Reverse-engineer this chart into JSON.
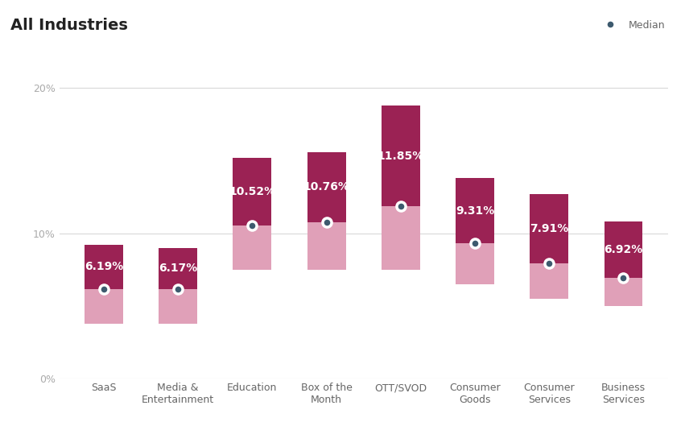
{
  "title": "All Industries",
  "categories": [
    "SaaS",
    "Media &\nEntertainment",
    "Education",
    "Box of the\nMonth",
    "OTT/SVOD",
    "Consumer\nGoods",
    "Consumer\nServices",
    "Business\nServices"
  ],
  "median_values": [
    6.19,
    6.17,
    10.52,
    10.76,
    11.85,
    9.31,
    7.91,
    6.92
  ],
  "bar_tops": [
    9.2,
    9.0,
    15.2,
    15.6,
    18.8,
    13.8,
    12.7,
    10.8
  ],
  "bar_bottoms": [
    3.8,
    3.8,
    7.5,
    7.5,
    7.5,
    6.5,
    5.5,
    5.0
  ],
  "dark_color": "#9b2254",
  "light_color": "#e0a0b8",
  "median_dot_color": "#3d5a6e",
  "median_dot_edge": "#ffffff",
  "background_color": "#ffffff",
  "grid_color": "#d8d8d8",
  "ylim": [
    0,
    23
  ],
  "yticks": [
    0,
    10,
    20
  ],
  "ytick_labels": [
    "0%",
    "10%",
    "20%"
  ],
  "legend_label": "Median",
  "title_fontsize": 14,
  "label_fontsize": 10,
  "tick_fontsize": 9
}
